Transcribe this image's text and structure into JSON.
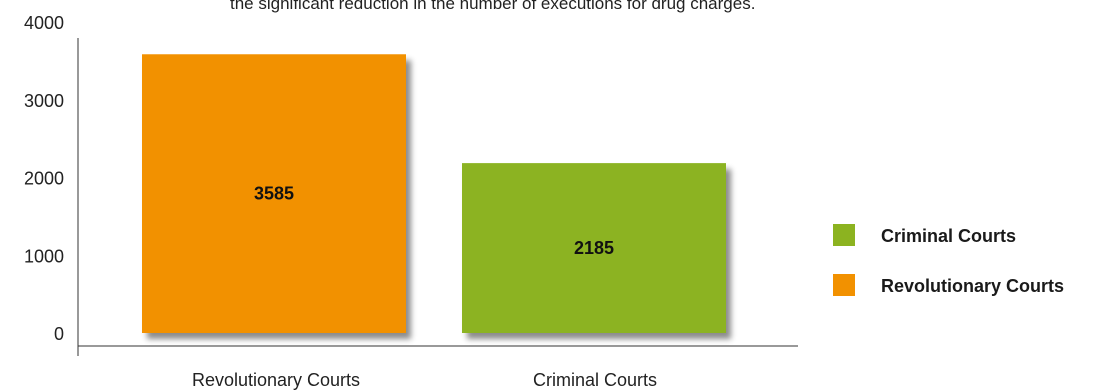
{
  "caption": "the significant reduction in the number of executions for drug charges.",
  "chart_data": {
    "type": "bar",
    "categories": [
      "Revolutionary Courts",
      "Criminal Courts"
    ],
    "values": [
      3585,
      2185
    ],
    "data_labels": [
      "3585",
      "2185"
    ],
    "colors": [
      "#F29100",
      "#8CB320"
    ],
    "ylim": [
      0,
      4000
    ],
    "yticks": [
      "0",
      "1000",
      "2000",
      "3000",
      "4000"
    ],
    "legend": [
      {
        "label": "Criminal Courts",
        "color": "#8CB320"
      },
      {
        "label": "Revolutionary Courts",
        "color": "#F29100"
      }
    ],
    "legend_position": "right",
    "grid": false
  }
}
